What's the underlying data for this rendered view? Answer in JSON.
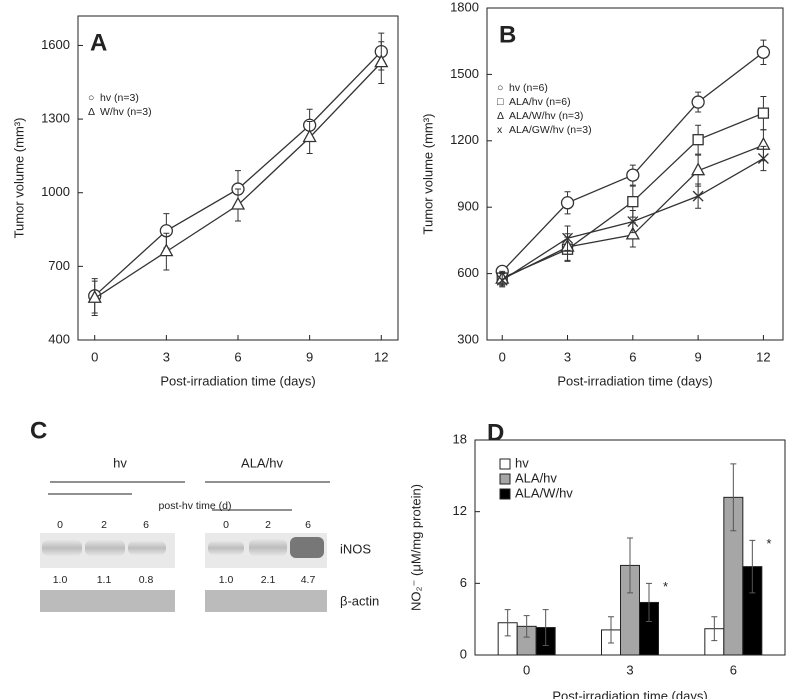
{
  "chart_data": [
    {
      "type": "line",
      "panel_label": "A",
      "x_label": "Post-irradiation time (days)",
      "y_label": "Tumor volume (mm³)",
      "x": [
        0,
        3,
        6,
        9,
        12
      ],
      "xlim": [
        -0.7,
        12.7
      ],
      "xticks": [
        0,
        3,
        6,
        9,
        12
      ],
      "ylim": [
        400,
        1720
      ],
      "yticks": [
        400,
        700,
        1000,
        1300,
        1600
      ],
      "legend": "upper left",
      "series": [
        {
          "name": "hv (n=3)",
          "marker": "o",
          "color": "#333333",
          "values": [
            580,
            845,
            1015,
            1275,
            1575
          ],
          "errors": [
            70,
            70,
            75,
            65,
            75
          ]
        },
        {
          "name": "W/hv (n=3)",
          "marker": "^",
          "color": "#333333",
          "values": [
            570,
            760,
            950,
            1225,
            1530
          ],
          "errors": [
            70,
            75,
            65,
            65,
            85
          ]
        }
      ]
    },
    {
      "type": "line",
      "panel_label": "B",
      "x_label": "Post-irradiation time  (days)",
      "y_label": "Tumor volume (mm³)",
      "x": [
        0,
        3,
        6,
        9,
        12
      ],
      "xlim": [
        -0.7,
        12.9
      ],
      "xticks": [
        0,
        3,
        6,
        9,
        12
      ],
      "ylim": [
        300,
        1800
      ],
      "yticks": [
        300,
        600,
        900,
        1200,
        1500,
        1800
      ],
      "legend": "upper left",
      "series": [
        {
          "name": "hv  (n=6)",
          "marker": "o",
          "color": "#333333",
          "values": [
            610,
            920,
            1045,
            1375,
            1600
          ],
          "errors": [
            15,
            50,
            45,
            45,
            55
          ]
        },
        {
          "name": "ALA/hv (n=6)",
          "marker": "s",
          "color": "#333333",
          "values": [
            580,
            710,
            925,
            1205,
            1325
          ],
          "errors": [
            30,
            55,
            70,
            65,
            75
          ]
        },
        {
          "name": "ALA/W/hv (n=3)",
          "marker": "^",
          "color": "#333333",
          "values": [
            575,
            720,
            775,
            1065,
            1180
          ],
          "errors": [
            30,
            60,
            55,
            70,
            70
          ]
        },
        {
          "name": "ALA/GW/hv (n=3)",
          "marker": "x",
          "color": "#333333",
          "values": [
            570,
            760,
            835,
            950,
            1120
          ],
          "errors": [
            30,
            55,
            50,
            55,
            55
          ]
        }
      ]
    },
    {
      "type": "bar",
      "panel_label": "D",
      "x_label": "Post-irradiation  time  (days)",
      "y_label": "NO₂⁻ (μM/mg protein)",
      "categories": [
        "0",
        "3",
        "6"
      ],
      "ylim": [
        0,
        18
      ],
      "yticks": [
        0,
        6,
        12,
        18
      ],
      "legend": "upper left",
      "annotations": [
        "*",
        "*"
      ],
      "series": [
        {
          "name": "hv",
          "color": "#ffffff",
          "values": [
            2.7,
            2.1,
            2.2
          ],
          "errors": [
            1.1,
            1.1,
            1.0
          ]
        },
        {
          "name": "ALA/hv",
          "color": "#a6a6a6",
          "values": [
            2.4,
            7.5,
            13.2
          ],
          "errors": [
            0.9,
            2.3,
            2.8
          ]
        },
        {
          "name": "ALA/W/hv",
          "color": "#000000",
          "values": [
            2.3,
            4.4,
            7.4
          ],
          "errors": [
            1.5,
            1.6,
            2.2
          ]
        }
      ]
    }
  ],
  "blot": {
    "panel_label": "C",
    "groups": [
      "hv",
      "ALA/hv"
    ],
    "time_label": "post-hv time (d)",
    "lanes": [
      "0",
      "2",
      "6",
      "0",
      "2",
      "6"
    ],
    "proteins": [
      "iNOS",
      "β-actin"
    ],
    "ratios": [
      "1.0",
      "1.1",
      "0.8",
      "1.0",
      "2.1",
      "4.7"
    ]
  }
}
